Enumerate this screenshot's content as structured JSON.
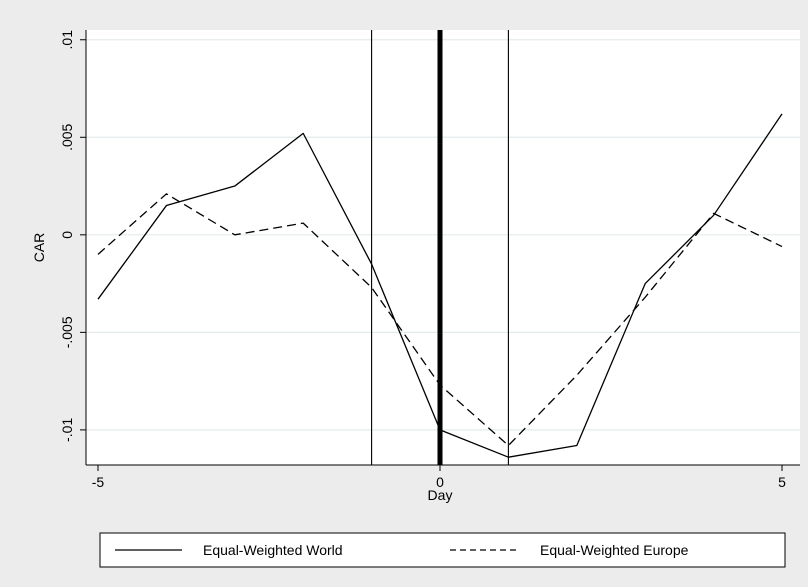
{
  "chart_data": {
    "type": "line",
    "xlabel": "Day",
    "ylabel": "CAR",
    "xlim": [
      -5,
      5
    ],
    "ylim": [
      -0.0118,
      0.0105
    ],
    "xticks": [
      -5,
      0,
      5
    ],
    "xtick_labels": [
      "-5",
      "0",
      "5"
    ],
    "yticks": [
      -0.01,
      -0.005,
      0,
      0.005,
      0.01
    ],
    "ytick_labels": [
      "-.01",
      "-.005",
      "0",
      ".005",
      ".01"
    ],
    "grid": "horizontal",
    "legend_position": "bottom",
    "event_lines": [
      {
        "x": -1,
        "style": "thin"
      },
      {
        "x": 0,
        "style": "thick"
      },
      {
        "x": 1,
        "style": "thin"
      }
    ],
    "x": [
      -5,
      -4,
      -3,
      -2,
      -1,
      0,
      1,
      2,
      3,
      4,
      5
    ],
    "series": [
      {
        "name": "Equal-Weighted World",
        "line_style": "solid",
        "color": "#000000",
        "values": [
          -0.0033,
          0.0015,
          0.0025,
          0.0052,
          -0.0015,
          -0.01,
          -0.0114,
          -0.0108,
          -0.0025,
          0.001,
          0.0062
        ]
      },
      {
        "name": "Equal-Weighted Europe",
        "line_style": "dashed",
        "color": "#000000",
        "values": [
          -0.001,
          0.0021,
          0.0,
          0.0006,
          -0.0027,
          -0.0077,
          -0.0108,
          -0.0072,
          -0.0032,
          0.0011,
          -0.0006
        ]
      }
    ]
  }
}
